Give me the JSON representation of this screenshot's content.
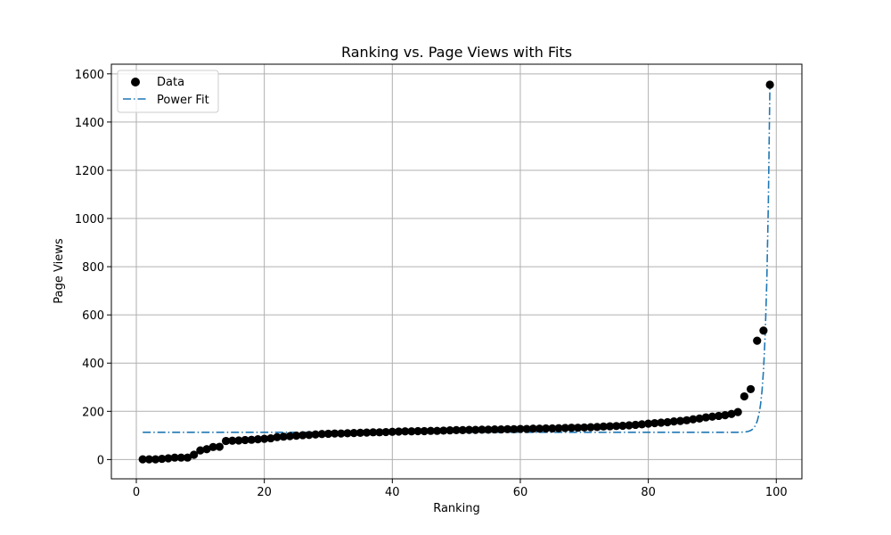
{
  "chart_data": {
    "type": "scatter",
    "title": "Ranking vs. Page Views with Fits",
    "xlabel": "Ranking",
    "ylabel": "Page Views",
    "xlim": [
      -3.9,
      104
    ],
    "ylim": [
      -80,
      1640
    ],
    "xticks": [
      0,
      20,
      40,
      60,
      80,
      100
    ],
    "yticks": [
      0,
      200,
      400,
      600,
      800,
      1000,
      1200,
      1400,
      1600
    ],
    "grid": true,
    "legend_position": "top-left",
    "series": [
      {
        "name": "Data",
        "kind": "scatter",
        "color": "#000000",
        "x": [
          1,
          2,
          3,
          4,
          5,
          6,
          7,
          8,
          9,
          10,
          11,
          12,
          13,
          14,
          15,
          16,
          17,
          18,
          19,
          20,
          21,
          22,
          23,
          24,
          25,
          26,
          27,
          28,
          29,
          30,
          31,
          32,
          33,
          34,
          35,
          36,
          37,
          38,
          39,
          40,
          41,
          42,
          43,
          44,
          45,
          46,
          47,
          48,
          49,
          50,
          51,
          52,
          53,
          54,
          55,
          56,
          57,
          58,
          59,
          60,
          61,
          62,
          63,
          64,
          65,
          66,
          67,
          68,
          69,
          70,
          71,
          72,
          73,
          74,
          75,
          76,
          77,
          78,
          79,
          80,
          81,
          82,
          83,
          84,
          85,
          86,
          87,
          88,
          89,
          90,
          91,
          92,
          93,
          94,
          95,
          96,
          97,
          98,
          99
        ],
        "y": [
          1,
          1,
          1,
          3,
          5,
          8,
          8,
          8,
          20,
          38,
          43,
          52,
          53,
          77,
          78,
          79,
          81,
          82,
          84,
          86,
          88,
          93,
          95,
          97,
          99,
          101,
          102,
          104,
          106,
          107,
          108,
          108,
          109,
          110,
          111,
          112,
          113,
          113,
          114,
          115,
          116,
          117,
          117,
          118,
          118,
          119,
          119,
          120,
          121,
          122,
          122,
          123,
          123,
          124,
          124,
          125,
          125,
          126,
          126,
          127,
          127,
          128,
          128,
          129,
          129,
          130,
          131,
          132,
          132,
          133,
          134,
          135,
          137,
          138,
          139,
          140,
          142,
          144,
          146,
          149,
          151,
          153,
          155,
          158,
          160,
          163,
          167,
          170,
          175,
          178,
          181,
          184,
          189,
          197,
          262,
          292,
          493,
          535,
          1555
        ]
      },
      {
        "name": "Power Fit",
        "kind": "line",
        "color": "#1f77b4",
        "dash": "dashdot",
        "fit": {
          "base": 113,
          "amplitude": 1442,
          "exponent": 170,
          "x_range": [
            1,
            99
          ]
        }
      }
    ]
  }
}
